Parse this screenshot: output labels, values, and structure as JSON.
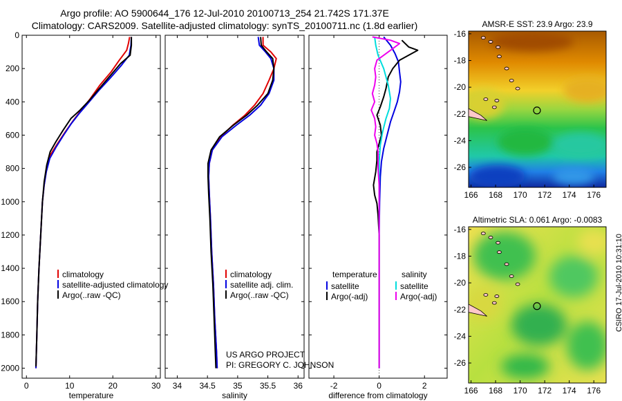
{
  "header": {
    "line1": "Argo profile: AO 5900644_176 12-Jul-2010 20100713_254 21.742S 171.37E",
    "line2": "Climatology: CARS2009. Satellite-adjusted climatology: synTS_20100711.nc (1.8d earlier)"
  },
  "colors": {
    "climatology": "#e00000",
    "satellite": "#0000e0",
    "argo": "#000000",
    "sat_salinity": "#00dddd",
    "argo_salinity": "#ee00ee"
  },
  "chart_data": [
    {
      "type": "line",
      "xlabel": "temperature",
      "xlim": [
        -1,
        31
      ],
      "ylim": [
        2060,
        0
      ],
      "xticks": [
        "0",
        "10",
        "20",
        "30"
      ],
      "yticks": [
        "0",
        "200",
        "400",
        "600",
        "800",
        "1000",
        "1200",
        "1400",
        "1600",
        "1800",
        "2000"
      ],
      "legend": [
        "climatology",
        "satellite-adjusted climatology",
        "Argo(..raw -QC)"
      ],
      "series": [
        {
          "name": "climatology",
          "color": "climatology",
          "points": [
            [
              23.9,
              10
            ],
            [
              23.6,
              50
            ],
            [
              23.2,
              90
            ],
            [
              21.5,
              150
            ],
            [
              19.6,
              220
            ],
            [
              17.0,
              300
            ],
            [
              14.8,
              380
            ],
            [
              12.7,
              450
            ],
            [
              10.9,
              510
            ],
            [
              9.0,
              580
            ],
            [
              7.2,
              650
            ],
            [
              5.5,
              720
            ],
            [
              4.7,
              800
            ],
            [
              4.1,
              900
            ],
            [
              3.7,
              1000
            ],
            [
              3.3,
              1200
            ],
            [
              2.9,
              1400
            ],
            [
              2.6,
              1600
            ],
            [
              2.4,
              1800
            ],
            [
              2.2,
              2000
            ]
          ]
        },
        {
          "name": "satellite-adjusted climatology",
          "color": "satellite",
          "points": [
            [
              24.3,
              10
            ],
            [
              24.2,
              60
            ],
            [
              23.8,
              120
            ],
            [
              22.0,
              180
            ],
            [
              19.3,
              260
            ],
            [
              16.8,
              330
            ],
            [
              14.2,
              410
            ],
            [
              12.2,
              470
            ],
            [
              10.4,
              530
            ],
            [
              8.6,
              600
            ],
            [
              6.9,
              670
            ],
            [
              5.4,
              740
            ],
            [
              4.6,
              820
            ],
            [
              4.1,
              900
            ],
            [
              3.7,
              1000
            ],
            [
              3.3,
              1200
            ],
            [
              2.9,
              1400
            ],
            [
              2.6,
              1600
            ],
            [
              2.4,
              1800
            ],
            [
              2.2,
              2000
            ]
          ]
        },
        {
          "name": "Argo(..raw -QC)",
          "color": "argo",
          "points": [
            [
              24.3,
              10
            ],
            [
              24.3,
              60
            ],
            [
              24.0,
              120
            ],
            [
              21.8,
              170
            ],
            [
              19.5,
              240
            ],
            [
              17.2,
              310
            ],
            [
              14.6,
              390
            ],
            [
              12.4,
              450
            ],
            [
              10.3,
              500
            ],
            [
              8.5,
              570
            ],
            [
              6.8,
              640
            ],
            [
              5.5,
              700
            ],
            [
              4.7,
              780
            ],
            [
              4.1,
              880
            ],
            [
              3.7,
              1000
            ],
            [
              3.3,
              1200
            ],
            [
              2.9,
              1400
            ],
            [
              2.6,
              1600
            ],
            [
              2.4,
              1800
            ],
            [
              2.2,
              1990
            ]
          ]
        }
      ]
    },
    {
      "type": "line",
      "xlabel": "salinity",
      "xlim": [
        33.8,
        36.1
      ],
      "ylim": [
        2060,
        0
      ],
      "xticks": [
        "34",
        "34.5",
        "35",
        "35.5",
        "36"
      ],
      "yticks": [
        "0",
        "200",
        "400",
        "600",
        "800",
        "1000",
        "1200",
        "1400",
        "1600",
        "1800",
        "2000"
      ],
      "legend": [
        "climatology",
        "satellite adj. clim.",
        "Argo(..raw -QC)"
      ],
      "footnote": [
        "US ARGO PROJECT",
        "PI: GREGORY C. JOHNSON"
      ],
      "series": [
        {
          "name": "climatology",
          "color": "climatology",
          "points": [
            [
              35.42,
              10
            ],
            [
              35.42,
              60
            ],
            [
              35.55,
              100
            ],
            [
              35.64,
              140
            ],
            [
              35.6,
              200
            ],
            [
              35.52,
              270
            ],
            [
              35.42,
              350
            ],
            [
              35.28,
              420
            ],
            [
              35.12,
              480
            ],
            [
              34.92,
              540
            ],
            [
              34.72,
              610
            ],
            [
              34.58,
              690
            ],
            [
              34.53,
              770
            ],
            [
              34.52,
              850
            ],
            [
              34.53,
              950
            ],
            [
              34.55,
              1100
            ],
            [
              34.57,
              1300
            ],
            [
              34.6,
              1500
            ],
            [
              34.62,
              1700
            ],
            [
              34.65,
              1900
            ],
            [
              34.66,
              2000
            ]
          ]
        },
        {
          "name": "satellite adj. clim.",
          "color": "satellite",
          "points": [
            [
              35.34,
              10
            ],
            [
              35.36,
              60
            ],
            [
              35.46,
              100
            ],
            [
              35.55,
              140
            ],
            [
              35.6,
              200
            ],
            [
              35.6,
              270
            ],
            [
              35.52,
              350
            ],
            [
              35.38,
              420
            ],
            [
              35.2,
              480
            ],
            [
              34.98,
              540
            ],
            [
              34.74,
              610
            ],
            [
              34.58,
              690
            ],
            [
              34.53,
              770
            ],
            [
              34.52,
              850
            ],
            [
              34.53,
              950
            ],
            [
              34.55,
              1100
            ],
            [
              34.57,
              1300
            ],
            [
              34.6,
              1500
            ],
            [
              34.62,
              1700
            ],
            [
              34.65,
              1900
            ],
            [
              34.66,
              2000
            ]
          ]
        },
        {
          "name": "Argo(..raw -QC)",
          "color": "argo",
          "points": [
            [
              35.38,
              10
            ],
            [
              35.39,
              60
            ],
            [
              35.48,
              100
            ],
            [
              35.58,
              140
            ],
            [
              35.6,
              200
            ],
            [
              35.58,
              270
            ],
            [
              35.5,
              350
            ],
            [
              35.33,
              420
            ],
            [
              35.15,
              480
            ],
            [
              34.93,
              540
            ],
            [
              34.7,
              610
            ],
            [
              34.56,
              690
            ],
            [
              34.51,
              770
            ],
            [
              34.51,
              850
            ],
            [
              34.52,
              950
            ],
            [
              34.54,
              1100
            ],
            [
              34.56,
              1300
            ],
            [
              34.59,
              1500
            ],
            [
              34.61,
              1700
            ],
            [
              34.63,
              1900
            ],
            [
              34.64,
              2000
            ]
          ]
        }
      ]
    },
    {
      "type": "line",
      "xlabel": "difference from climatology",
      "xlim": [
        -3.1,
        3.0
      ],
      "ylim": [
        2060,
        0
      ],
      "xticks": [
        "-2",
        "0",
        "2"
      ],
      "yticks": [
        "0",
        "200",
        "400",
        "600",
        "800",
        "1000",
        "1200",
        "1400",
        "1600",
        "1800",
        "2000"
      ],
      "legend_temperature": {
        "heading": "temperature",
        "items": [
          "satellite",
          "Argo(-adj)"
        ]
      },
      "legend_salinity": {
        "heading": "salinity",
        "items": [
          "satellite",
          "Argo(-adj)"
        ]
      },
      "series": [
        {
          "name": "temperature satellite",
          "color": "satellite",
          "points": [
            [
              0.2,
              10
            ],
            [
              0.5,
              60
            ],
            [
              0.7,
              110
            ],
            [
              0.85,
              160
            ],
            [
              0.9,
              220
            ],
            [
              0.95,
              280
            ],
            [
              0.9,
              340
            ],
            [
              0.8,
              400
            ],
            [
              0.65,
              460
            ],
            [
              0.5,
              520
            ],
            [
              0.35,
              600
            ],
            [
              0.2,
              680
            ],
            [
              0.1,
              760
            ],
            [
              0.05,
              850
            ],
            [
              0.02,
              1000
            ],
            [
              0.0,
              1200
            ],
            [
              0.0,
              1600
            ],
            [
              0.0,
              2000
            ]
          ]
        },
        {
          "name": "temperature Argo(-adj)",
          "color": "argo",
          "points": [
            [
              1.0,
              30
            ],
            [
              1.3,
              70
            ],
            [
              1.7,
              90
            ],
            [
              1.3,
              120
            ],
            [
              0.9,
              150
            ],
            [
              0.6,
              200
            ],
            [
              0.4,
              250
            ],
            [
              0.3,
              320
            ],
            [
              0.2,
              370
            ],
            [
              0.05,
              430
            ],
            [
              -0.1,
              480
            ],
            [
              0.05,
              540
            ],
            [
              0.1,
              600
            ],
            [
              0.0,
              650
            ],
            [
              -0.1,
              700
            ],
            [
              -0.1,
              750
            ],
            [
              -0.15,
              820
            ],
            [
              -0.25,
              900
            ],
            [
              -0.2,
              960
            ],
            [
              -0.1,
              1010
            ],
            [
              -0.05,
              1080
            ],
            [
              0.0,
              1200
            ],
            [
              0.0,
              1600
            ],
            [
              0.0,
              2000
            ]
          ]
        },
        {
          "name": "salinity satellite",
          "color": "sat_salinity",
          "points": [
            [
              -0.2,
              10
            ],
            [
              -0.15,
              60
            ],
            [
              -0.05,
              120
            ],
            [
              0.2,
              200
            ],
            [
              0.4,
              300
            ],
            [
              0.5,
              380
            ],
            [
              0.45,
              440
            ],
            [
              0.3,
              500
            ],
            [
              0.15,
              580
            ],
            [
              0.05,
              660
            ],
            [
              0.0,
              760
            ],
            [
              0.0,
              1000
            ],
            [
              0.0,
              1600
            ],
            [
              0.0,
              2000
            ]
          ]
        },
        {
          "name": "salinity Argo(-adj)",
          "color": "argo_salinity",
          "points": [
            [
              -0.3,
              10
            ],
            [
              0.5,
              30
            ],
            [
              0.9,
              50
            ],
            [
              0.6,
              80
            ],
            [
              0.2,
              120
            ],
            [
              -0.1,
              150
            ],
            [
              -0.2,
              200
            ],
            [
              -0.15,
              250
            ],
            [
              -0.2,
              300
            ],
            [
              -0.3,
              350
            ],
            [
              -0.2,
              400
            ],
            [
              -0.35,
              450
            ],
            [
              -0.2,
              500
            ],
            [
              -0.15,
              550
            ],
            [
              -0.2,
              600
            ],
            [
              -0.1,
              650
            ],
            [
              -0.05,
              700
            ],
            [
              -0.05,
              800
            ],
            [
              0.0,
              900
            ],
            [
              0.0,
              1000
            ],
            [
              0.0,
              1600
            ],
            [
              0.0,
              2000
            ]
          ]
        }
      ]
    },
    {
      "type": "heatmap",
      "title": "AMSR-E SST: 23.9  Argo: 23.9",
      "xticks": [
        "166",
        "168",
        "170",
        "172",
        "174",
        "176"
      ],
      "yticks": [
        "-16",
        "-18",
        "-20",
        "-22",
        "-24",
        "-26"
      ],
      "xlim": [
        165.8,
        177.0
      ],
      "ylim": [
        -27.5,
        -15.8
      ],
      "marker": [
        171.37,
        -21.742
      ]
    },
    {
      "type": "heatmap",
      "title": "Altimetric SLA: 0.061  Argo: -0.0083",
      "xticks": [
        "166",
        "168",
        "170",
        "172",
        "174",
        "176"
      ],
      "yticks": [
        "-16",
        "-18",
        "-20",
        "-22",
        "-24",
        "-26"
      ],
      "xlim": [
        165.8,
        177.0
      ],
      "ylim": [
        -27.5,
        -15.8
      ],
      "marker": [
        171.37,
        -21.742
      ]
    }
  ],
  "side_label": "CSIRO 17-Jul-2010 10:31:10"
}
